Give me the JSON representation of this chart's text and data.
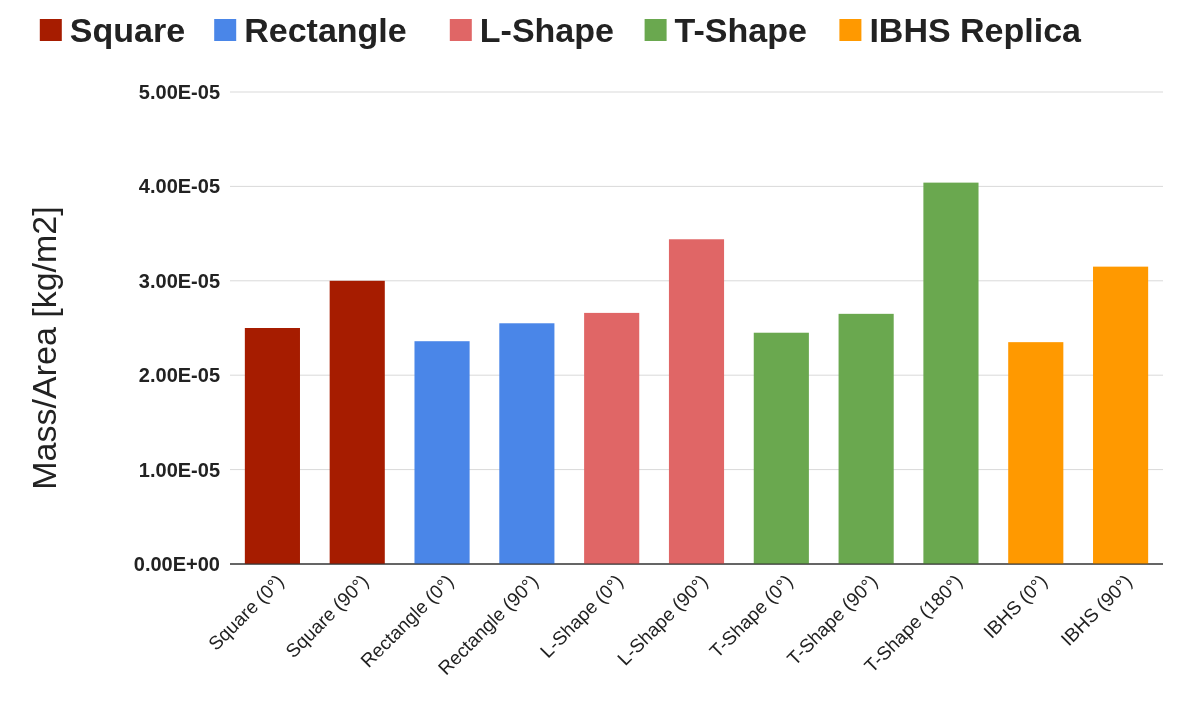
{
  "chart_data": {
    "type": "bar",
    "ylabel": "Mass/Area [kg/m2]",
    "categories": [
      "Square (0°)",
      "Square (90°)",
      "Rectangle (0°)",
      "Rectangle (90°)",
      "L-Shape (0°)",
      "L-Shape (90°)",
      "T-Shape (0°)",
      "T-Shape (90°)",
      "T-Shape (180°)",
      "IBHS (0°)",
      "IBHS (90°)"
    ],
    "series": [
      {
        "name": "Square",
        "color": "#a61c00",
        "values": [
          2.5e-05,
          3e-05,
          null,
          null,
          null,
          null,
          null,
          null,
          null,
          null,
          null
        ]
      },
      {
        "name": "Rectangle",
        "color": "#4a86e8",
        "values": [
          null,
          null,
          2.36e-05,
          2.55e-05,
          null,
          null,
          null,
          null,
          null,
          null,
          null
        ]
      },
      {
        "name": "L-Shape",
        "color": "#e06666",
        "values": [
          null,
          null,
          null,
          null,
          2.66e-05,
          3.44e-05,
          null,
          null,
          null,
          null,
          null
        ]
      },
      {
        "name": "T-Shape",
        "color": "#6aa84f",
        "values": [
          null,
          null,
          null,
          null,
          null,
          null,
          2.45e-05,
          2.65e-05,
          4.04e-05,
          null,
          null
        ]
      },
      {
        "name": "IBHS Replica",
        "color": "#ff9900",
        "values": [
          null,
          null,
          null,
          null,
          null,
          null,
          null,
          null,
          null,
          2.35e-05,
          3.15e-05
        ]
      }
    ],
    "ylim": [
      0,
      5e-05
    ],
    "yticks": [
      {
        "value": 0,
        "label": "0.00E+00"
      },
      {
        "value": 1e-05,
        "label": "1.00E-05"
      },
      {
        "value": 2e-05,
        "label": "2.00E-05"
      },
      {
        "value": 3e-05,
        "label": "3.00E-05"
      },
      {
        "value": 4e-05,
        "label": "4.00E-05"
      },
      {
        "value": 5e-05,
        "label": "5.00E-05"
      }
    ],
    "grid": "y",
    "legend": "top"
  }
}
